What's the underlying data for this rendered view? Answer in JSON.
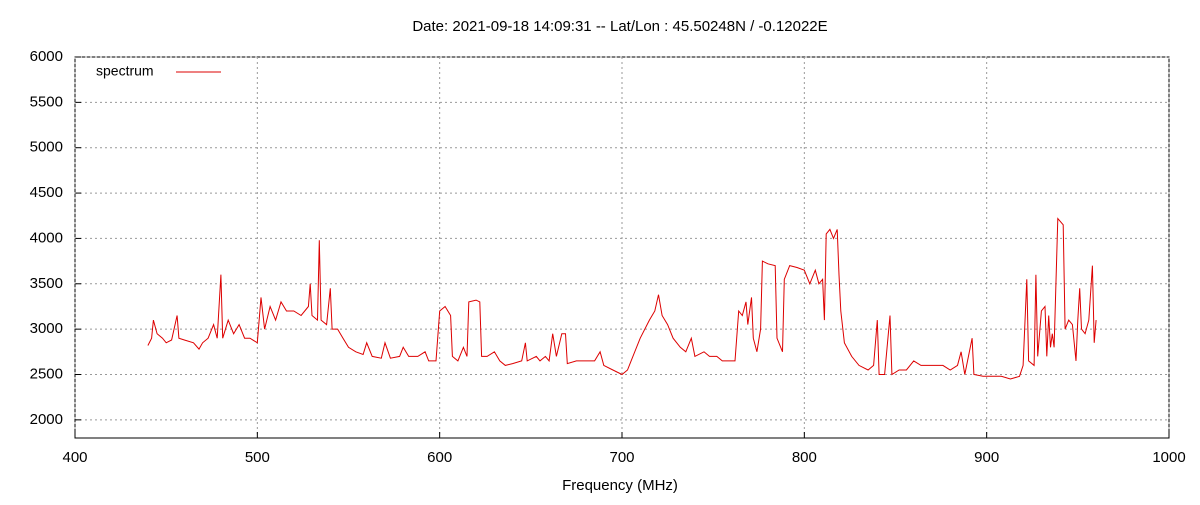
{
  "chart_data": {
    "type": "line",
    "title": "Date: 2021-09-18 14:09:31  --  Lat/Lon : 45.50248N / -0.12022E",
    "x_label": "Frequency (MHz)",
    "xlim": [
      400,
      1000
    ],
    "xticks": [
      400,
      500,
      600,
      700,
      800,
      900,
      1000
    ],
    "ylim": [
      1800,
      6000
    ],
    "yticks": [
      2000,
      2500,
      3000,
      3500,
      4000,
      4500,
      5000,
      5500,
      6000
    ],
    "grid": true,
    "legend": "top-left",
    "x": [
      440,
      442,
      443,
      445,
      448,
      450,
      453,
      456,
      457,
      460,
      465,
      468,
      470,
      473,
      476,
      478,
      480,
      481,
      484,
      487,
      490,
      493,
      496,
      500,
      502,
      504,
      507,
      510,
      513,
      516,
      520,
      524,
      528,
      529,
      530,
      533,
      534,
      535,
      538,
      540,
      541,
      544,
      547,
      550,
      554,
      558,
      560,
      563,
      568,
      570,
      573,
      578,
      580,
      583,
      588,
      592,
      594,
      598,
      600,
      603,
      606,
      607,
      610,
      613,
      615,
      616,
      620,
      622,
      623,
      626,
      630,
      633,
      636,
      640,
      645,
      647,
      648,
      653,
      655,
      658,
      660,
      662,
      664,
      667,
      669,
      670,
      675,
      680,
      685,
      688,
      690,
      695,
      700,
      703,
      705,
      710,
      715,
      718,
      720,
      722,
      725,
      728,
      732,
      735,
      738,
      740,
      745,
      748,
      752,
      755,
      758,
      762,
      764,
      766,
      768,
      769,
      771,
      772,
      774,
      776,
      777,
      780,
      784,
      785,
      788,
      789,
      792,
      796,
      800,
      803,
      806,
      808,
      810,
      811,
      812,
      814,
      816,
      818,
      819,
      820,
      822,
      826,
      830,
      835,
      838,
      840,
      841,
      844,
      847,
      848,
      852,
      856,
      860,
      864,
      868,
      872,
      876,
      880,
      884,
      886,
      888,
      892,
      893,
      898,
      902,
      908,
      913,
      918,
      920,
      922,
      923,
      926,
      927,
      928,
      930,
      932,
      933,
      934,
      935,
      936,
      937,
      939,
      942,
      943,
      945,
      947,
      949,
      950,
      951,
      952,
      954,
      956,
      958,
      959,
      960
    ],
    "series": [
      {
        "name": "spectrum",
        "color": "#dd0000",
        "values": [
          2820,
          2900,
          3100,
          2950,
          2900,
          2850,
          2880,
          3150,
          2900,
          2880,
          2850,
          2780,
          2850,
          2900,
          3050,
          2900,
          3600,
          2900,
          3100,
          2950,
          3050,
          2900,
          2900,
          2850,
          3350,
          3000,
          3250,
          3100,
          3300,
          3200,
          3200,
          3150,
          3250,
          3500,
          3150,
          3100,
          3980,
          3100,
          3050,
          3450,
          3000,
          3000,
          2900,
          2800,
          2750,
          2720,
          2850,
          2700,
          2680,
          2850,
          2680,
          2700,
          2800,
          2700,
          2700,
          2750,
          2650,
          2650,
          3200,
          3250,
          3150,
          2700,
          2650,
          2800,
          2700,
          3300,
          3320,
          3300,
          2700,
          2700,
          2750,
          2650,
          2600,
          2620,
          2650,
          2850,
          2650,
          2700,
          2650,
          2700,
          2650,
          2950,
          2700,
          2950,
          2950,
          2620,
          2650,
          2650,
          2650,
          2750,
          2600,
          2550,
          2500,
          2550,
          2650,
          2900,
          3100,
          3200,
          3380,
          3150,
          3050,
          2900,
          2800,
          2750,
          2900,
          2700,
          2750,
          2700,
          2700,
          2650,
          2650,
          2650,
          3200,
          3150,
          3300,
          3050,
          3350,
          2900,
          2750,
          3000,
          3750,
          3720,
          3700,
          2900,
          2750,
          3550,
          3700,
          3680,
          3650,
          3500,
          3650,
          3500,
          3550,
          3100,
          4050,
          4100,
          4000,
          4100,
          3600,
          3200,
          2850,
          2700,
          2600,
          2550,
          2600,
          3100,
          2500,
          2500,
          3150,
          2500,
          2550,
          2550,
          2650,
          2600,
          2600,
          2600,
          2600,
          2550,
          2600,
          2750,
          2500,
          2900,
          2500,
          2480,
          2480,
          2480,
          2450,
          2480,
          2600,
          3550,
          2650,
          2600,
          3600,
          2700,
          3200,
          3250,
          2700,
          3150,
          2800,
          2950,
          2800,
          4220,
          4150,
          3000,
          3100,
          3050,
          2650,
          3100,
          3450,
          3000,
          2950,
          3100,
          3700,
          2850,
          3100
        ]
      }
    ]
  }
}
